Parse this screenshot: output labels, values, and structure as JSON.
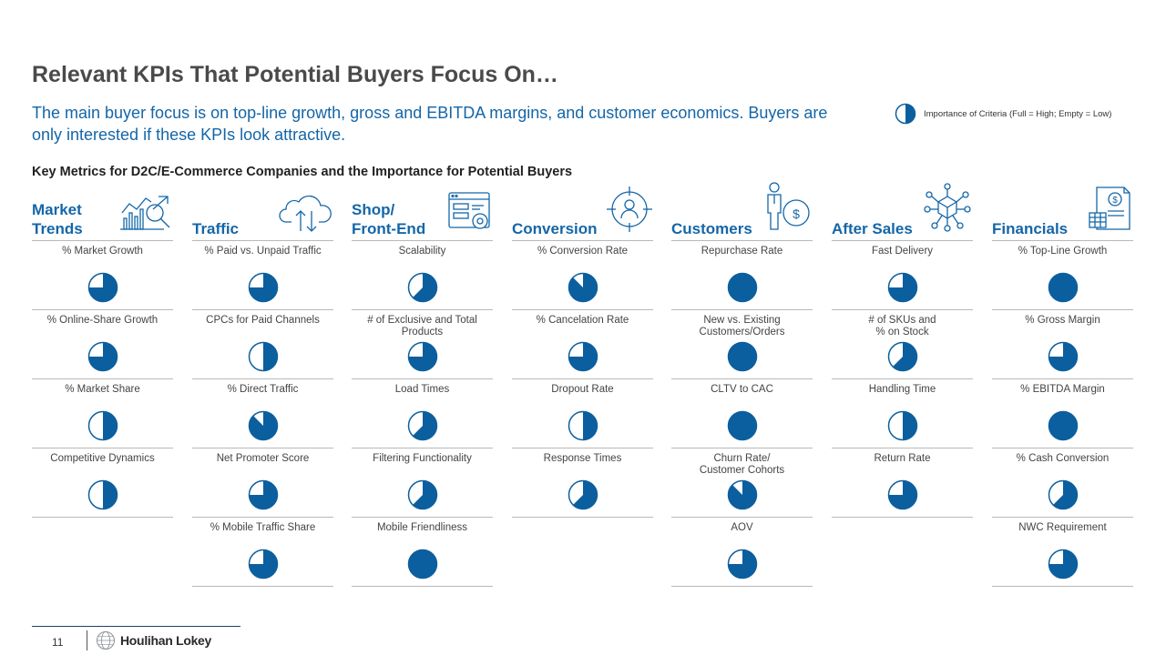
{
  "title": "Relevant KPIs That Potential Buyers Focus On…",
  "subtitle": "The main buyer focus is on top-line growth, gross and EBITDA margins, and customer economics. Buyers are only interested if these KPIs look attractive.",
  "legend": {
    "text": "Importance of Criteria (Full = High; Empty = Low)",
    "value": 0.5
  },
  "section_heading": "Key Metrics for D2C/E-Commerce Companies and the Importance for Potential Buyers",
  "colors": {
    "accent": "#1466a8",
    "pie": "#0c5f9e",
    "divider": "#b9b9b9"
  },
  "categories": [
    {
      "title": "Market\nTrends",
      "icon": "market-trends-icon",
      "kpis": [
        {
          "label": "% Market Growth",
          "value": 0.75
        },
        {
          "label": "% Online-Share Growth",
          "value": 0.75
        },
        {
          "label": "% Market Share",
          "value": 0.5
        },
        {
          "label": "Competitive Dynamics",
          "value": 0.5
        }
      ]
    },
    {
      "title": "Traffic",
      "icon": "cloud-transfer-icon",
      "kpis": [
        {
          "label": "% Paid vs. Unpaid Traffic",
          "value": 0.75
        },
        {
          "label": "CPCs for Paid Channels",
          "value": 0.5
        },
        {
          "label": "% Direct Traffic",
          "value": 0.875
        },
        {
          "label": "Net Promoter Score",
          "value": 0.75
        },
        {
          "label": "% Mobile Traffic Share",
          "value": 0.75
        }
      ]
    },
    {
      "title": "Shop/\nFront-End",
      "icon": "website-settings-icon",
      "kpis": [
        {
          "label": "Scalability",
          "value": 0.625
        },
        {
          "label": "# of Exclusive and Total\nProducts",
          "value": 0.75
        },
        {
          "label": "Load Times",
          "value": 0.625
        },
        {
          "label": "Filtering Functionality",
          "value": 0.625
        },
        {
          "label": "Mobile Friendliness",
          "value": 1
        }
      ]
    },
    {
      "title": "Conversion",
      "icon": "target-user-icon",
      "kpis": [
        {
          "label": "% Conversion Rate",
          "value": 0.875
        },
        {
          "label": "% Cancelation Rate",
          "value": 0.75
        },
        {
          "label": "Dropout Rate",
          "value": 0.5
        },
        {
          "label": "Response Times",
          "value": 0.625
        }
      ]
    },
    {
      "title": "Customers",
      "icon": "customer-dollar-icon",
      "kpis": [
        {
          "label": "Repurchase Rate",
          "value": 1
        },
        {
          "label": "New vs. Existing\nCustomers/Orders",
          "value": 1
        },
        {
          "label": "CLTV to CAC",
          "value": 1
        },
        {
          "label": "Churn Rate/\nCustomer Cohorts",
          "value": 0.875
        },
        {
          "label": "AOV",
          "value": 0.75
        }
      ]
    },
    {
      "title": "After Sales",
      "icon": "network-box-icon",
      "kpis": [
        {
          "label": "Fast Delivery",
          "value": 0.75
        },
        {
          "label": "# of SKUs and\n% on Stock",
          "value": 0.625
        },
        {
          "label": "Handling Time",
          "value": 0.5
        },
        {
          "label": "Return Rate",
          "value": 0.75
        }
      ]
    },
    {
      "title": "Financials",
      "icon": "financial-document-icon",
      "kpis": [
        {
          "label": "% Top-Line Growth",
          "value": 1
        },
        {
          "label": "% Gross Margin",
          "value": 0.75
        },
        {
          "label": "% EBITDA Margin",
          "value": 1
        },
        {
          "label": "% Cash Conversion",
          "value": 0.625
        },
        {
          "label": "NWC Requirement",
          "value": 0.75
        }
      ]
    }
  ],
  "footer": {
    "page_number": "11",
    "logo_text": "Houlihan Lokey"
  }
}
